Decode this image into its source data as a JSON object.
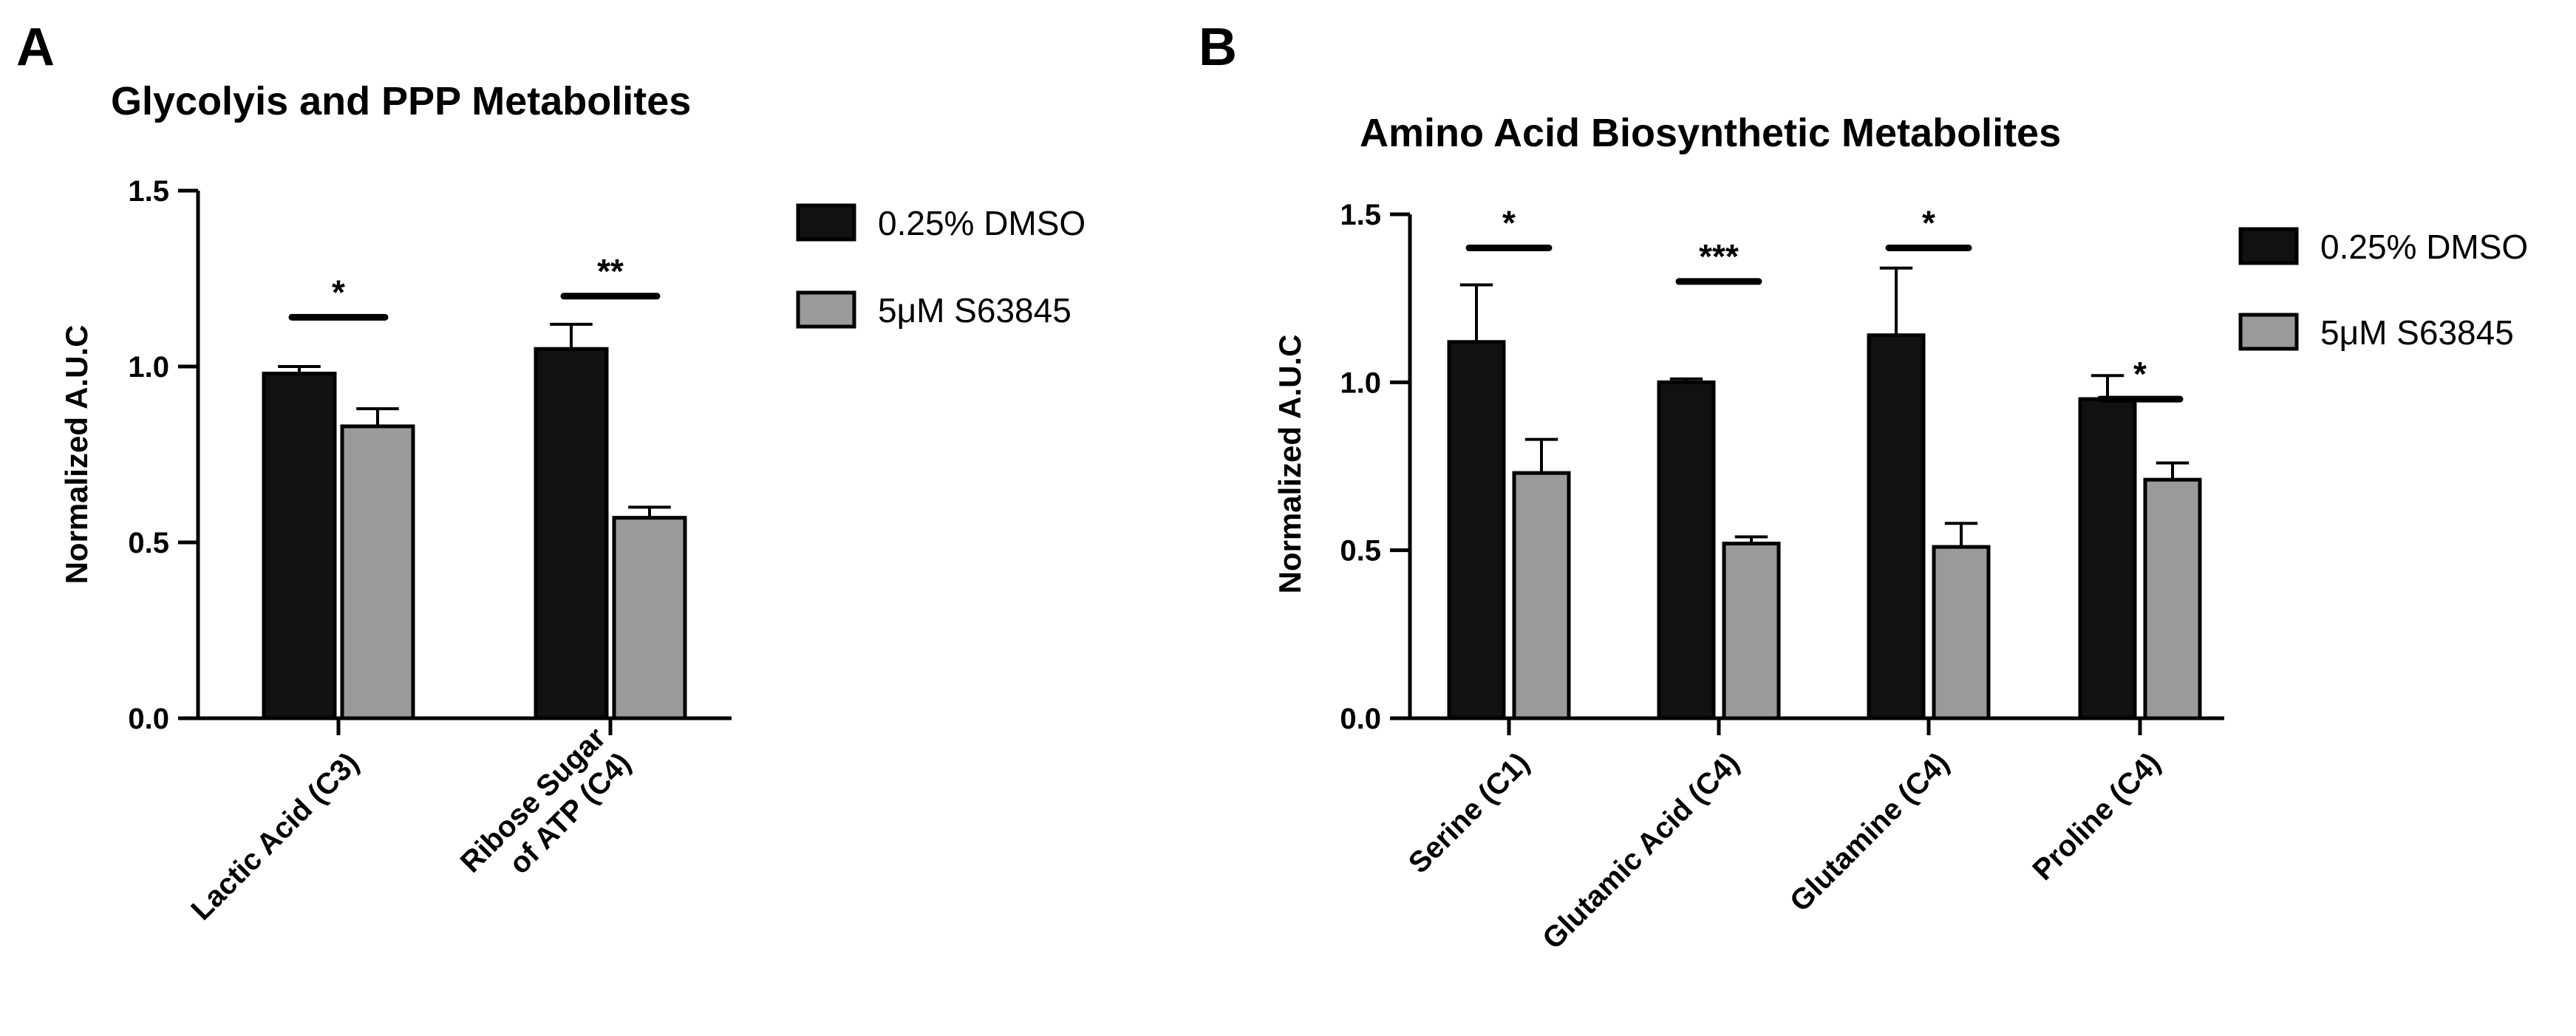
{
  "chart_data": [
    {
      "panel": "A",
      "type": "bar",
      "title": "Glycolyis and PPP Metabolites",
      "ylabel": "Normalized  A.U.C",
      "ylim": [
        0,
        1.5
      ],
      "yticks": [
        "0.0",
        "0.5",
        "1.0",
        "1.5"
      ],
      "ytick_values": [
        0,
        0.5,
        1.0,
        1.5
      ],
      "categories": [
        [
          "Lactic Acid (C3)"
        ],
        [
          "Ribose Sugar",
          "of ATP (C4)"
        ]
      ],
      "series": [
        {
          "name": "0.25% DMSO",
          "color": "#111111",
          "values": [
            0.98,
            1.05
          ],
          "errors": [
            0.02,
            0.07
          ]
        },
        {
          "name": "5μM S63845",
          "color": "#9a9a9a",
          "values": [
            0.83,
            0.57
          ],
          "errors": [
            0.05,
            0.03
          ]
        }
      ],
      "significance": [
        "*",
        "**"
      ],
      "significance_y": [
        1.14,
        1.2
      ],
      "legend": "top-right",
      "grid": false
    },
    {
      "panel": "B",
      "type": "bar",
      "title": "Amino Acid Biosynthetic Metabolites",
      "ylabel": "Normalized  A.U.C",
      "ylim": [
        0,
        1.5
      ],
      "yticks": [
        "0.0",
        "0.5",
        "1.0",
        "1.5"
      ],
      "ytick_values": [
        0,
        0.5,
        1.0,
        1.5
      ],
      "categories": [
        [
          "Serine (C1)"
        ],
        [
          "Glutamic Acid (C4)"
        ],
        [
          "Glutamine (C4)"
        ],
        [
          "Proline (C4)"
        ]
      ],
      "series": [
        {
          "name": "0.25% DMSO",
          "color": "#111111",
          "values": [
            1.12,
            1.0,
            1.14,
            0.95
          ],
          "errors": [
            0.17,
            0.01,
            0.2,
            0.07
          ]
        },
        {
          "name": "5μM S63845",
          "color": "#9a9a9a",
          "values": [
            0.73,
            0.52,
            0.51,
            0.71
          ],
          "errors": [
            0.1,
            0.02,
            0.07,
            0.05
          ]
        }
      ],
      "significance": [
        "*",
        "***",
        "*",
        "*"
      ],
      "significance_y": [
        1.4,
        1.3,
        1.4,
        0.95
      ],
      "legend": "top-right",
      "grid": false
    }
  ]
}
